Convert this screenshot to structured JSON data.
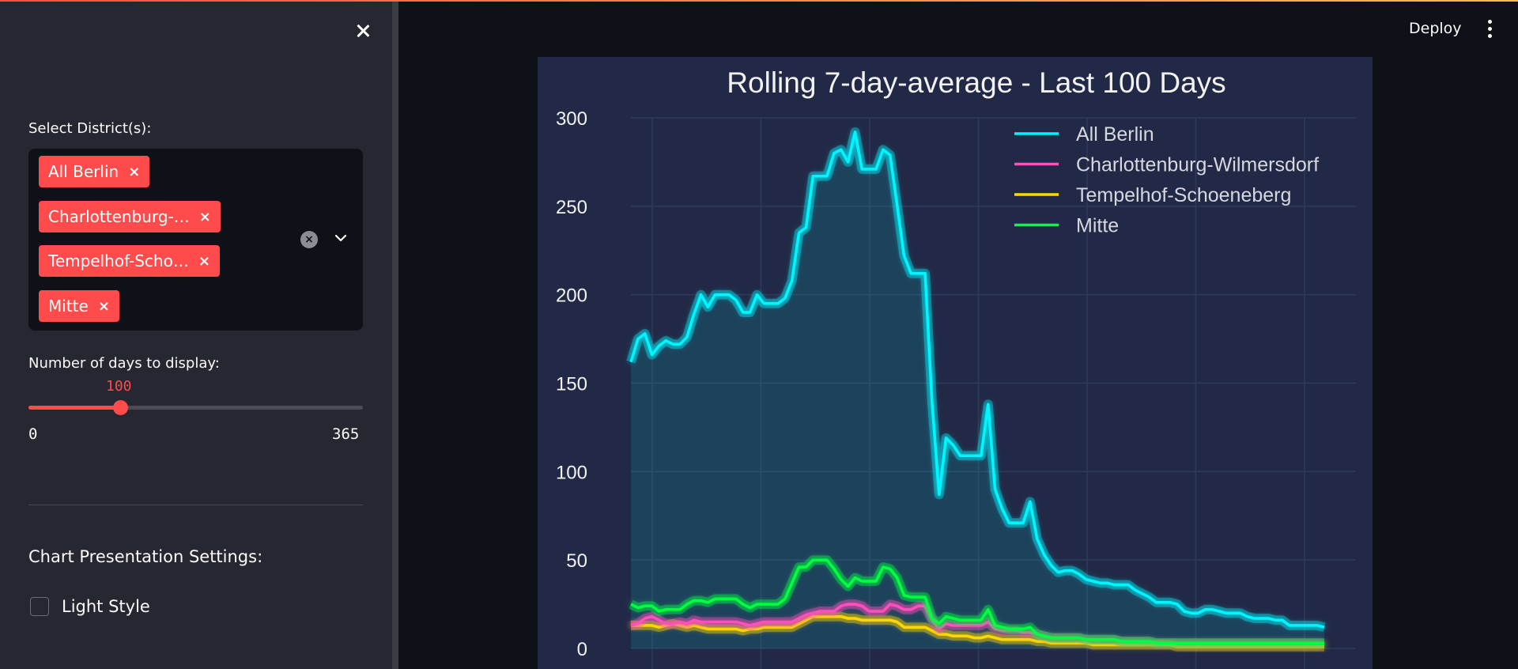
{
  "sidebar": {
    "close_label": "×",
    "district_label": "Select District(s):",
    "selected_districts": [
      "All Berlin",
      "Charlottenburg-…",
      "Tempelhof-Scho…",
      "Mitte"
    ],
    "tag_remove": "×",
    "clear_all": "×",
    "days_label": "Number of days to display:",
    "slider": {
      "value": "100",
      "value_num": 100,
      "min": "0",
      "min_num": 0,
      "max": "365",
      "max_num": 365
    },
    "section_title": "Chart Presentation Settings:",
    "light_style_label": "Light Style",
    "light_style_checked": false
  },
  "header": {
    "deploy_label": "Deploy",
    "menu_icon": "kebab-menu-icon"
  },
  "colors": {
    "accent": "#ff4b4b",
    "all_berlin": "#00f5ff",
    "charlottenburg": "#ff4fbd",
    "tempelhof": "#ffd700",
    "mitte": "#00ff41",
    "plot_bg": "#212946"
  },
  "chart_data": {
    "type": "line",
    "title": "Rolling 7-day-average - Last 100 Days",
    "xlabel": "",
    "ylabel": "",
    "ylim": [
      0,
      300
    ],
    "yticks": [
      "0",
      "50",
      "100",
      "150",
      "200",
      "250",
      "300"
    ],
    "grid": true,
    "legend_position": "top-right",
    "area_fill_under": "All Berlin",
    "series": [
      {
        "name": "All Berlin",
        "color": "#00f5ff",
        "values": [
          162,
          175,
          178,
          166,
          171,
          174,
          172,
          172,
          176,
          189,
          200,
          193,
          200,
          200,
          200,
          197,
          190,
          190,
          200,
          195,
          195,
          195,
          198,
          208,
          235,
          238,
          267,
          267,
          267,
          280,
          282,
          275,
          292,
          271,
          271,
          271,
          282,
          279,
          251,
          222,
          212,
          212,
          212,
          139,
          87,
          119,
          115,
          109,
          109,
          109,
          109,
          138,
          90,
          79,
          71,
          71,
          71,
          83,
          62,
          53,
          47,
          43,
          44,
          44,
          42,
          39,
          38,
          37,
          37,
          36,
          36,
          36,
          33,
          31,
          29,
          26,
          26,
          26,
          25,
          21,
          20,
          20,
          22,
          22,
          21,
          20,
          20,
          20,
          18,
          17,
          17,
          17,
          16,
          16,
          13,
          13,
          13,
          13,
          13,
          12
        ]
      },
      {
        "name": "Charlottenburg-Wilmersdorf",
        "color": "#ff4fbd",
        "values": [
          13,
          14,
          17,
          18,
          16,
          14,
          14,
          15,
          14,
          16,
          15,
          15,
          15,
          15,
          15,
          15,
          14,
          13,
          14,
          15,
          15,
          15,
          15,
          15,
          17,
          19,
          20,
          21,
          21,
          21,
          24,
          25,
          25,
          24,
          21,
          21,
          21,
          25,
          24,
          22,
          22,
          24,
          24,
          16,
          11,
          14,
          13,
          13,
          13,
          13,
          13,
          15,
          11,
          10,
          10,
          10,
          9,
          9,
          8,
          7,
          6,
          6,
          6,
          6,
          6,
          5,
          5,
          5,
          5,
          5,
          4,
          4,
          4,
          4,
          4,
          3,
          3,
          3,
          3,
          3,
          3,
          3,
          3,
          3,
          3,
          3,
          3,
          3,
          3,
          3,
          3,
          3,
          3,
          3,
          3,
          3,
          3,
          3,
          3,
          3
        ]
      },
      {
        "name": "Tempelhof-Schoeneberg",
        "color": "#ffd700",
        "values": [
          13,
          13,
          13,
          13,
          12,
          13,
          14,
          13,
          12,
          13,
          12,
          11,
          11,
          11,
          11,
          11,
          10,
          11,
          11,
          12,
          12,
          12,
          12,
          12,
          14,
          16,
          18,
          18,
          18,
          18,
          18,
          17,
          17,
          16,
          16,
          16,
          16,
          16,
          15,
          12,
          12,
          12,
          12,
          10,
          8,
          8,
          7,
          7,
          7,
          6,
          6,
          7,
          6,
          5,
          5,
          5,
          5,
          5,
          4,
          4,
          3,
          3,
          3,
          3,
          3,
          3,
          2,
          2,
          2,
          2,
          2,
          2,
          2,
          2,
          2,
          2,
          2,
          2,
          1,
          1,
          1,
          1,
          1,
          1,
          1,
          1,
          1,
          1,
          1,
          1,
          1,
          1,
          1,
          1,
          1,
          1,
          1,
          1,
          1,
          1
        ]
      },
      {
        "name": "Mitte",
        "color": "#00ff41",
        "values": [
          25,
          23,
          24,
          24,
          21,
          22,
          22,
          22,
          25,
          27,
          27,
          26,
          28,
          28,
          28,
          28,
          25,
          23,
          25,
          25,
          25,
          25,
          28,
          37,
          46,
          46,
          50,
          50,
          50,
          45,
          39,
          35,
          40,
          38,
          38,
          38,
          46,
          45,
          40,
          30,
          29,
          29,
          29,
          17,
          14,
          18,
          17,
          16,
          16,
          16,
          16,
          22,
          13,
          12,
          11,
          11,
          11,
          12,
          8,
          7,
          6,
          6,
          6,
          6,
          6,
          5,
          5,
          5,
          5,
          5,
          4,
          4,
          4,
          4,
          4,
          3,
          3,
          3,
          3,
          3,
          3,
          3,
          3,
          3,
          3,
          3,
          3,
          3,
          3,
          3,
          3,
          3,
          3,
          3,
          3,
          3,
          3,
          3,
          3,
          3
        ]
      }
    ]
  }
}
